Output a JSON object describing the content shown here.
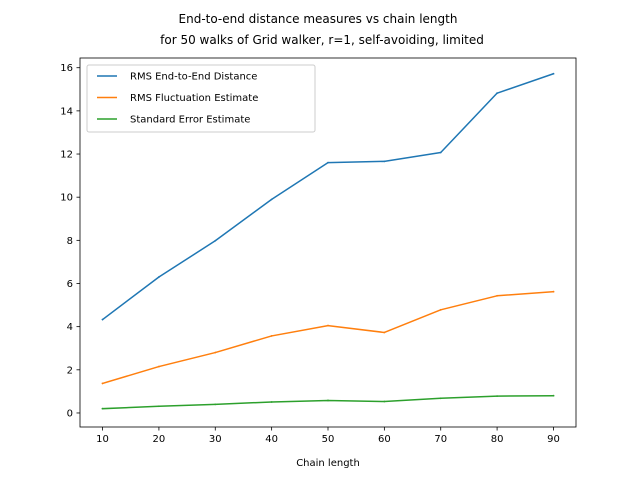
{
  "chart_data": {
    "type": "line",
    "title_line1": "End-to-end distance measures vs chain length",
    "title_line2": "for 50 walks of Grid walker, r=1, self-avoiding, limited",
    "xlabel": "Chain length",
    "ylabel": "",
    "x": [
      10,
      20,
      30,
      40,
      50,
      60,
      70,
      80,
      90
    ],
    "xlim": [
      6,
      94
    ],
    "ylim": [
      -0.65,
      16.45
    ],
    "xticks": [
      10,
      20,
      30,
      40,
      50,
      60,
      70,
      80,
      90
    ],
    "yticks": [
      0,
      2,
      4,
      6,
      8,
      10,
      12,
      14,
      16
    ],
    "grid": false,
    "legend_position": "top-left",
    "series": [
      {
        "name": "RMS End-to-End Distance",
        "color": "#1f77b4",
        "values": [
          4.33,
          6.3,
          7.98,
          9.9,
          11.6,
          11.66,
          12.07,
          14.82,
          15.72
        ]
      },
      {
        "name": "RMS Fluctuation Estimate",
        "color": "#ff7f0e",
        "values": [
          1.37,
          2.15,
          2.8,
          3.57,
          4.05,
          3.73,
          4.78,
          5.43,
          5.62
        ]
      },
      {
        "name": "Standard Error Estimate",
        "color": "#2ca02c",
        "values": [
          0.2,
          0.31,
          0.4,
          0.51,
          0.58,
          0.53,
          0.68,
          0.78,
          0.8
        ]
      }
    ]
  }
}
